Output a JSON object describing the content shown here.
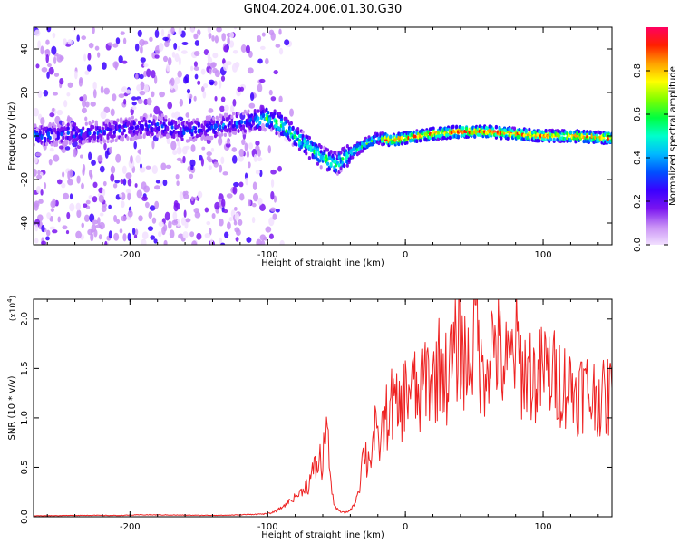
{
  "title": "GN04.2024.006.01.30.G30",
  "chart_data": [
    {
      "type": "heatmap",
      "xlabel": "Height of straight line (km)",
      "ylabel": "Frequency (Hz)",
      "xlim": [
        -270,
        150
      ],
      "ylim": [
        -50,
        50
      ],
      "xticks": [
        -200,
        -100,
        0,
        100
      ],
      "xtick_labels": [
        "-200",
        "-100",
        "0",
        "100"
      ],
      "yticks": [
        -40,
        -20,
        0,
        20,
        40
      ],
      "ytick_labels": [
        "-40",
        "-20",
        "0",
        "20",
        "40"
      ],
      "colorbar": {
        "label": "Normalized spectral amplitude",
        "range": [
          0,
          1
        ],
        "ticks": [
          0.0,
          0.2,
          0.4,
          0.6,
          0.8
        ],
        "tick_labels": [
          "0.0",
          "0.2",
          "0.4",
          "0.6",
          "0.8"
        ],
        "colors": [
          "#f2e0ff",
          "#c890f5",
          "#7a14f0",
          "#3a00ff",
          "#0050ff",
          "#00b8ff",
          "#00ffcc",
          "#00ff40",
          "#7fff00",
          "#ffff00",
          "#ffa000",
          "#ff2000",
          "#ff0060"
        ]
      },
      "ridge_track": [
        {
          "x": -270,
          "f": 0
        },
        {
          "x": -220,
          "f": 2
        },
        {
          "x": -180,
          "f": 5
        },
        {
          "x": -160,
          "f": 2
        },
        {
          "x": -120,
          "f": 6
        },
        {
          "x": -100,
          "f": 8
        },
        {
          "x": -90,
          "f": 5
        },
        {
          "x": -80,
          "f": 0
        },
        {
          "x": -70,
          "f": -5
        },
        {
          "x": -60,
          "f": -10
        },
        {
          "x": -50,
          "f": -13
        },
        {
          "x": -40,
          "f": -8
        },
        {
          "x": -30,
          "f": -4
        },
        {
          "x": -20,
          "f": -1
        },
        {
          "x": -10,
          "f": -2
        },
        {
          "x": 0,
          "f": -1
        },
        {
          "x": 20,
          "f": 1
        },
        {
          "x": 40,
          "f": 2
        },
        {
          "x": 60,
          "f": 2
        },
        {
          "x": 80,
          "f": 1
        },
        {
          "x": 100,
          "f": 0
        },
        {
          "x": 120,
          "f": 0
        },
        {
          "x": 150,
          "f": -1
        }
      ]
    },
    {
      "type": "line",
      "xlabel": "Height of straight line (km)",
      "ylabel": "SNR (10 * v/v)",
      "y_multiplier_label": "(x10",
      "y_multiplier_exp": "4",
      "xlim": [
        -270,
        150
      ],
      "ylim": [
        0,
        22000
      ],
      "xticks": [
        -200,
        -100,
        0,
        100
      ],
      "xtick_labels": [
        "-200",
        "-100",
        "0",
        "100"
      ],
      "yticks": [
        0,
        5000,
        10000,
        15000,
        20000
      ],
      "ytick_labels": [
        "0.0",
        "0.5",
        "1.0",
        "1.5",
        "2.0"
      ],
      "color": "#ee2222",
      "series": [
        {
          "x": [
            -270,
            -250,
            -230,
            -210,
            -190,
            -170,
            -150,
            -130,
            -110,
            -100,
            -95,
            -90,
            -85,
            -80,
            -75,
            -70,
            -65,
            -62,
            -60,
            -58,
            -56,
            -54,
            -52,
            -50,
            -47,
            -44,
            -41,
            -38,
            -35,
            -32,
            -30,
            -28,
            -25,
            -22,
            -20,
            -15,
            -10,
            -5,
            0,
            5,
            10,
            15,
            20,
            25,
            30,
            35,
            40,
            45,
            50,
            52,
            55,
            60,
            65,
            70,
            75,
            80,
            85,
            90,
            95,
            100,
            105,
            110,
            115,
            120,
            125,
            130,
            135,
            140,
            145,
            150
          ],
          "y": [
            100,
            120,
            150,
            130,
            200,
            180,
            150,
            150,
            250,
            300,
            500,
            900,
            1500,
            2000,
            2600,
            3500,
            5000,
            5800,
            4500,
            10500,
            7500,
            3000,
            1500,
            800,
            500,
            400,
            600,
            1000,
            2200,
            4500,
            7500,
            5500,
            6500,
            8500,
            7000,
            9500,
            11500,
            10500,
            12500,
            13500,
            11500,
            14500,
            13500,
            15500,
            14000,
            16000,
            17500,
            15000,
            18500,
            21000,
            14000,
            16500,
            18000,
            15500,
            15000,
            17500,
            14500,
            15000,
            13500,
            15000,
            14500,
            14000,
            13500,
            13000,
            12500,
            13000,
            12000,
            12500,
            11500,
            13000
          ]
        }
      ]
    }
  ]
}
